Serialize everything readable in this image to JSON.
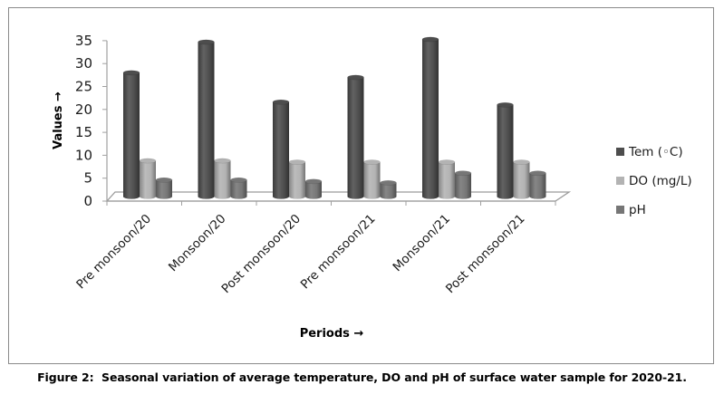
{
  "chart_data": {
    "type": "bar",
    "style": "3d-cylinder",
    "title": "",
    "xlabel": "Periods →",
    "ylabel": "Values →",
    "ylim": [
      0,
      35
    ],
    "yticks": [
      0,
      5,
      10,
      15,
      20,
      25,
      30,
      35
    ],
    "grid": false,
    "legend_position": "right",
    "categories": [
      "Pre monsoon/20",
      "Monsoon/20",
      "Post monsoon/20",
      "Pre monsoon/21",
      "Monsoon/21",
      "Post monsoon/21"
    ],
    "series": [
      {
        "name": "Tem (◦C)",
        "color": "#4d4d4d",
        "values": [
          27,
          33.7,
          20.6,
          26,
          34.3,
          20
        ]
      },
      {
        "name": "DO (mg/L)",
        "color": "#b3b3b3",
        "values": [
          7.8,
          7.8,
          7.5,
          7.5,
          7.5,
          7.5
        ]
      },
      {
        "name": "pH",
        "color": "#767676",
        "values": [
          3.6,
          3.6,
          3.3,
          3.0,
          5.1,
          5.1
        ]
      }
    ]
  },
  "caption": "Figure 2:  Seasonal variation of average temperature, DO and pH of surface water sample for 2020-21."
}
